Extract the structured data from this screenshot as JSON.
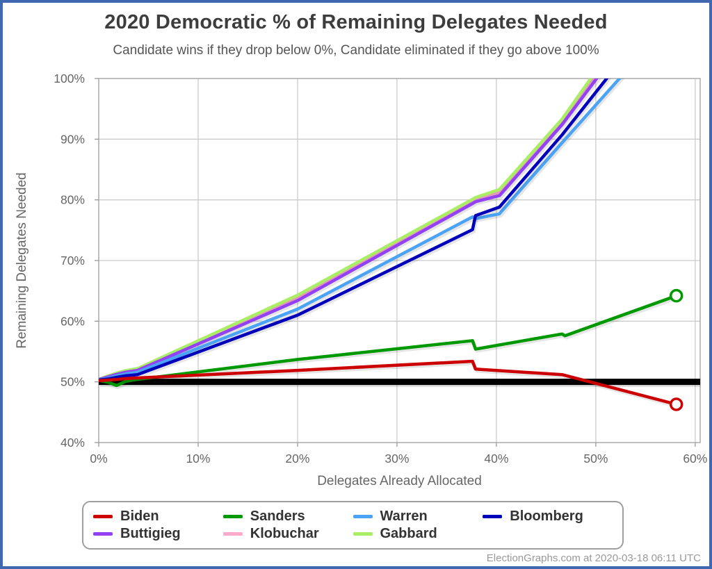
{
  "footer": "ElectionGraphs.com at 2020-03-18 06:11 UTC",
  "frame_border_color": "#4068b0",
  "chart_data": {
    "type": "line",
    "title": "2020 Democratic % of Remaining Delegates Needed",
    "subtitle": "Candidate wins if they drop below 0%, Candidate eliminated if they go above 100%",
    "xlabel": "Delegates Already Allocated",
    "ylabel": "Remaining Delegates Needed",
    "xlim": [
      0,
      60.5
    ],
    "ylim": [
      40,
      100
    ],
    "x_ticks": [
      0,
      10,
      20,
      30,
      40,
      50,
      60
    ],
    "x_tick_labels": [
      "0%",
      "10%",
      "20%",
      "30%",
      "40%",
      "50%",
      "60%"
    ],
    "y_ticks": [
      40,
      50,
      60,
      70,
      80,
      90,
      100
    ],
    "y_tick_labels": [
      "40%",
      "50%",
      "60%",
      "70%",
      "80%",
      "90%",
      "100%"
    ],
    "grid": true,
    "grid_color": "#cccccc",
    "plot_border_color": "#aaaaaa",
    "tick_label_color": "#666666",
    "reference_line": {
      "y": 50,
      "color": "#000000",
      "width": 9
    },
    "legend_position": "bottom",
    "series": [
      {
        "name": "Biden",
        "color": "#cc0000",
        "z": 7,
        "end_marker": true,
        "points": [
          [
            0,
            50.2
          ],
          [
            1,
            50.3
          ],
          [
            1.8,
            50.4
          ],
          [
            2.7,
            50.55
          ],
          [
            3.9,
            50.65
          ],
          [
            20,
            51.9
          ],
          [
            37.6,
            53.4
          ],
          [
            37.9,
            52.1
          ],
          [
            46.6,
            51.2
          ],
          [
            58.1,
            46.3
          ]
        ]
      },
      {
        "name": "Sanders",
        "color": "#009900",
        "z": 6,
        "end_marker": true,
        "points": [
          [
            0,
            50.25
          ],
          [
            1,
            49.9
          ],
          [
            1.8,
            49.4
          ],
          [
            2.7,
            50.1
          ],
          [
            3.9,
            50.4
          ],
          [
            20,
            53.7
          ],
          [
            37.6,
            56.8
          ],
          [
            37.9,
            55.4
          ],
          [
            46.6,
            57.9
          ],
          [
            46.9,
            57.6
          ],
          [
            58.1,
            64.2
          ]
        ]
      },
      {
        "name": "Warren",
        "color": "#4ba3f5",
        "z": 4,
        "end_marker": false,
        "points": [
          [
            0,
            50.35
          ],
          [
            1,
            50.65
          ],
          [
            1.8,
            51.0
          ],
          [
            2.7,
            51.3
          ],
          [
            3.9,
            51.6
          ],
          [
            20,
            62.0
          ],
          [
            37.6,
            77.2
          ],
          [
            37.9,
            76.9
          ],
          [
            40.3,
            77.7
          ],
          [
            46.6,
            89.4
          ],
          [
            58.1,
            110.5
          ]
        ]
      },
      {
        "name": "Bloomberg",
        "color": "#0000bb",
        "z": 5,
        "end_marker": false,
        "points": [
          [
            0,
            50.3
          ],
          [
            1,
            50.5
          ],
          [
            1.8,
            50.75
          ],
          [
            2.7,
            51.0
          ],
          [
            3.9,
            51.2
          ],
          [
            20,
            61.0
          ],
          [
            37.6,
            75.1
          ],
          [
            37.9,
            77.4
          ],
          [
            40.3,
            78.8
          ],
          [
            46.6,
            90.7
          ],
          [
            58.1,
            114.5
          ]
        ]
      },
      {
        "name": "Buttigieg",
        "color": "#9440f5",
        "z": 3,
        "end_marker": false,
        "points": [
          [
            0,
            50.4
          ],
          [
            1,
            50.85
          ],
          [
            1.8,
            51.25
          ],
          [
            2.7,
            51.6
          ],
          [
            3.9,
            51.9
          ],
          [
            20,
            63.4
          ],
          [
            37.6,
            79.4
          ],
          [
            37.9,
            79.7
          ],
          [
            40.3,
            80.7
          ],
          [
            46.6,
            92.4
          ],
          [
            58.1,
            117.5
          ]
        ]
      },
      {
        "name": "Klobuchar",
        "color": "#ffaacc",
        "z": 1,
        "end_marker": false,
        "points": [
          [
            0,
            50.4
          ],
          [
            1,
            50.9
          ],
          [
            1.8,
            51.3
          ],
          [
            2.7,
            51.7
          ],
          [
            3.9,
            52.0
          ],
          [
            20,
            63.9
          ],
          [
            37.6,
            79.8
          ],
          [
            37.9,
            80.1
          ],
          [
            40.3,
            81.2
          ],
          [
            46.6,
            92.9
          ],
          [
            58.1,
            119.0
          ]
        ]
      },
      {
        "name": "Gabbard",
        "color": "#aaee66",
        "z": 2,
        "end_marker": false,
        "points": [
          [
            0,
            50.4
          ],
          [
            1,
            51.0
          ],
          [
            1.8,
            51.45
          ],
          [
            2.7,
            51.85
          ],
          [
            3.9,
            52.2
          ],
          [
            20,
            64.3
          ],
          [
            37.6,
            80.1
          ],
          [
            37.9,
            80.4
          ],
          [
            40.3,
            81.7
          ],
          [
            46.6,
            93.3
          ],
          [
            58.1,
            120.0
          ]
        ]
      }
    ]
  }
}
